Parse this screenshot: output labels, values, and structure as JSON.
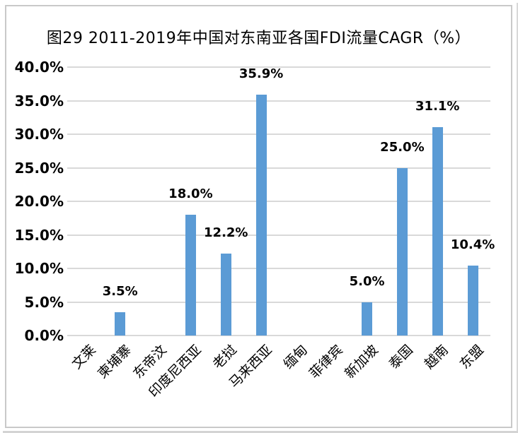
{
  "chart_data": {
    "type": "bar",
    "title": "图29 2011-2019年中国对东南亚各国FDI流量CAGR（%）",
    "categories": [
      "文莱",
      "柬埔寨",
      "东帝汶",
      "印度尼西亚",
      "老挝",
      "马来西亚",
      "缅甸",
      "菲律宾",
      "新加坡",
      "泰国",
      "越南",
      "东盟"
    ],
    "values": [
      0,
      3.5,
      0,
      18.0,
      12.2,
      35.9,
      0,
      0,
      5.0,
      25.0,
      31.1,
      10.4
    ],
    "data_labels": [
      "",
      "3.5%",
      "",
      "18.0%",
      "12.2%",
      "35.9%",
      "",
      "",
      "5.0%",
      "25.0%",
      "31.1%",
      "10.4%"
    ],
    "xlabel": "",
    "ylabel": "",
    "ylim": [
      0,
      40
    ],
    "ytick_step": 5,
    "ytick_labels": [
      "0.0%",
      "5.0%",
      "10.0%",
      "15.0%",
      "20.0%",
      "25.0%",
      "30.0%",
      "35.0%",
      "40.0%"
    ],
    "grid": true,
    "legend": false,
    "colors": {
      "bar": "#5B9BD5",
      "gridline": "#D9D9D9",
      "text": "#000000",
      "frame_border": "#C9C9C9"
    }
  }
}
